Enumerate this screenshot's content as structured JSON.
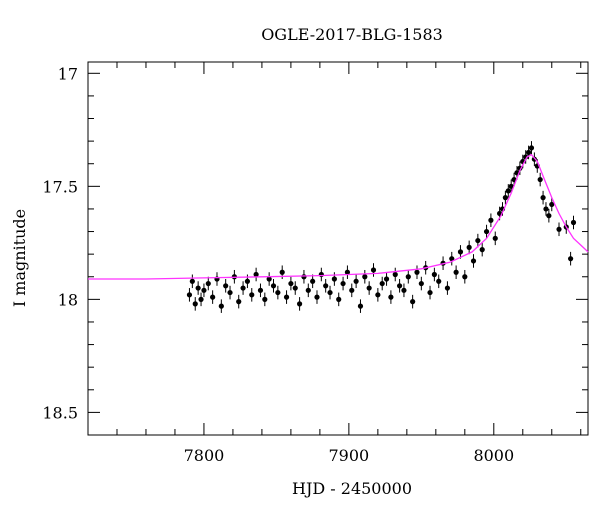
{
  "chart_data": {
    "type": "scatter",
    "title": "OGLE-2017-BLG-1583",
    "xlabel": "HJD - 2450000",
    "ylabel": "I magnitude",
    "xlim": [
      7720,
      8065
    ],
    "ylim": [
      18.6,
      16.95
    ],
    "y_inverted": true,
    "x_ticks": [
      7800,
      7900,
      8000
    ],
    "x_tick_labels": [
      "7800",
      "7900",
      "8000"
    ],
    "y_ticks": [
      17,
      17.5,
      18,
      18.5
    ],
    "y_tick_labels": [
      "17",
      "17.5",
      "18",
      "18.5"
    ],
    "x_minor_step": 20,
    "y_minor_step": 0.1,
    "grid": false,
    "legend": "none",
    "colors": {
      "points": "#000000",
      "model": "#ff33ff",
      "frame": "#000000"
    },
    "model_curve": {
      "type": "line",
      "x": [
        7720,
        7760,
        7800,
        7840,
        7880,
        7920,
        7950,
        7970,
        7985,
        7995,
        8005,
        8012,
        8018,
        8023,
        8026,
        8030,
        8035,
        8040,
        8045,
        8050,
        8055,
        8060,
        8065
      ],
      "y": [
        17.91,
        17.91,
        17.905,
        17.9,
        17.895,
        17.885,
        17.865,
        17.835,
        17.79,
        17.73,
        17.63,
        17.53,
        17.43,
        17.37,
        17.36,
        17.39,
        17.47,
        17.55,
        17.62,
        17.68,
        17.73,
        17.76,
        17.79
      ]
    },
    "data_points": {
      "x": [
        7790,
        7792,
        7794,
        7796,
        7798,
        7800,
        7803,
        7806,
        7809,
        7812,
        7815,
        7818,
        7821,
        7824,
        7827,
        7830,
        7833,
        7836,
        7839,
        7842,
        7845,
        7848,
        7851,
        7854,
        7857,
        7860,
        7863,
        7866,
        7869,
        7872,
        7875,
        7878,
        7881,
        7884,
        7887,
        7890,
        7893,
        7896,
        7899,
        7902,
        7905,
        7908,
        7911,
        7914,
        7917,
        7920,
        7923,
        7926,
        7929,
        7932,
        7935,
        7938,
        7941,
        7944,
        7947,
        7950,
        7953,
        7956,
        7959,
        7962,
        7965,
        7968,
        7971,
        7974,
        7977,
        7980,
        7983,
        7986,
        7989,
        7992,
        7995,
        7998,
        8001,
        8004,
        8006,
        8008,
        8010,
        8012,
        8014,
        8016,
        8018,
        8020,
        8022,
        8024,
        8026,
        8028,
        8030,
        8032,
        8034,
        8036,
        8038,
        8040,
        8045,
        8050,
        8053,
        8055
      ],
      "y": [
        17.98,
        17.92,
        18.02,
        17.95,
        18.0,
        17.96,
        17.93,
        17.99,
        17.91,
        18.03,
        17.94,
        17.97,
        17.9,
        18.01,
        17.95,
        17.92,
        17.98,
        17.89,
        17.96,
        18.0,
        17.91,
        17.94,
        17.97,
        17.88,
        17.99,
        17.93,
        17.95,
        18.02,
        17.9,
        17.96,
        17.92,
        17.99,
        17.89,
        17.94,
        17.97,
        17.91,
        18.0,
        17.93,
        17.88,
        17.96,
        17.92,
        18.03,
        17.9,
        17.95,
        17.87,
        17.98,
        17.93,
        17.91,
        17.99,
        17.89,
        17.94,
        17.96,
        17.9,
        18.01,
        17.88,
        17.93,
        17.86,
        17.97,
        17.89,
        17.92,
        17.84,
        17.95,
        17.82,
        17.88,
        17.79,
        17.9,
        17.77,
        17.83,
        17.74,
        17.78,
        17.7,
        17.65,
        17.73,
        17.62,
        17.6,
        17.55,
        17.52,
        17.5,
        17.47,
        17.44,
        17.42,
        17.39,
        17.37,
        17.35,
        17.33,
        17.38,
        17.41,
        17.47,
        17.55,
        17.6,
        17.63,
        17.58,
        17.69,
        17.68,
        17.82,
        17.66
      ],
      "err": [
        0.03,
        0.03,
        0.03,
        0.03,
        0.03,
        0.03,
        0.03,
        0.03,
        0.03,
        0.03,
        0.03,
        0.03,
        0.03,
        0.03,
        0.03,
        0.03,
        0.03,
        0.03,
        0.03,
        0.03,
        0.03,
        0.03,
        0.03,
        0.03,
        0.03,
        0.03,
        0.03,
        0.03,
        0.03,
        0.03,
        0.03,
        0.03,
        0.03,
        0.03,
        0.03,
        0.03,
        0.03,
        0.03,
        0.03,
        0.03,
        0.03,
        0.03,
        0.03,
        0.03,
        0.03,
        0.03,
        0.03,
        0.03,
        0.03,
        0.03,
        0.03,
        0.03,
        0.03,
        0.03,
        0.03,
        0.03,
        0.03,
        0.03,
        0.03,
        0.03,
        0.03,
        0.03,
        0.03,
        0.03,
        0.03,
        0.03,
        0.03,
        0.03,
        0.03,
        0.03,
        0.03,
        0.03,
        0.03,
        0.03,
        0.03,
        0.03,
        0.03,
        0.03,
        0.03,
        0.03,
        0.03,
        0.03,
        0.03,
        0.03,
        0.03,
        0.03,
        0.03,
        0.03,
        0.03,
        0.03,
        0.03,
        0.03,
        0.03,
        0.03,
        0.03,
        0.03
      ]
    }
  }
}
